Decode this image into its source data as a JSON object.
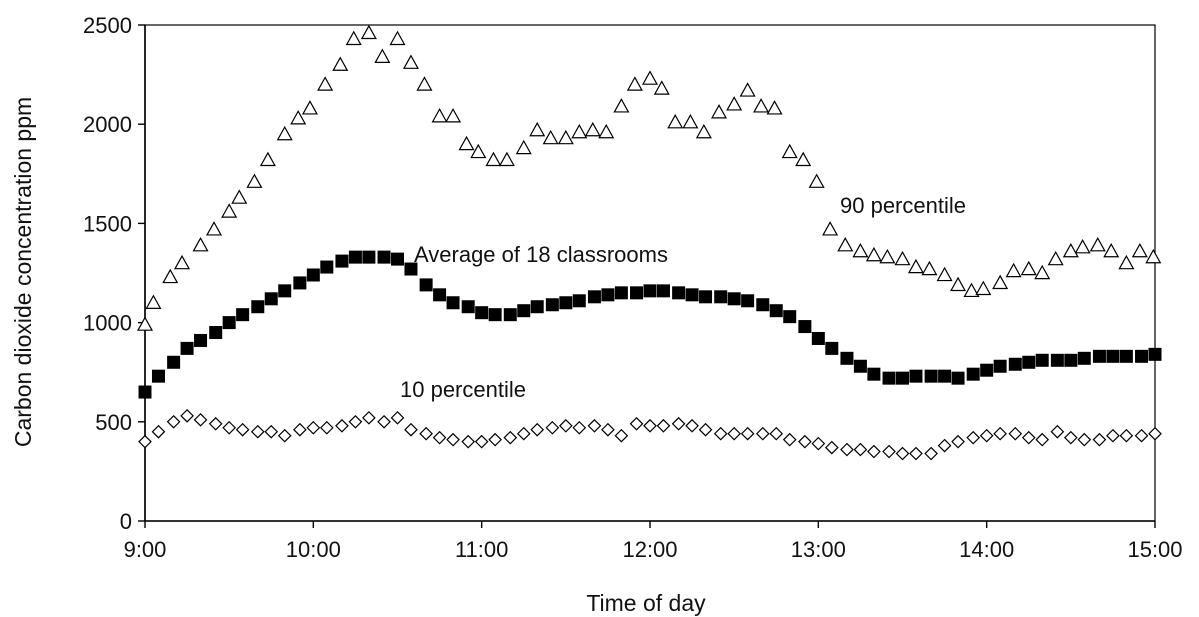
{
  "chart_data": {
    "type": "scatter",
    "title": "",
    "xlabel": "Time of day",
    "ylabel": "Carbon dioxide concentration ppm",
    "x_unit": "hours (clock time)",
    "xlim": [
      9,
      15
    ],
    "ylim": [
      0,
      2500
    ],
    "x_ticks": [
      {
        "value": 9,
        "label": "9:00"
      },
      {
        "value": 10,
        "label": "10:00"
      },
      {
        "value": 11,
        "label": "11:00"
      },
      {
        "value": 12,
        "label": "12:00"
      },
      {
        "value": 13,
        "label": "13:00"
      },
      {
        "value": 14,
        "label": "14:00"
      },
      {
        "value": 15,
        "label": "15:00"
      }
    ],
    "y_ticks": [
      {
        "value": 0,
        "label": "0"
      },
      {
        "value": 500,
        "label": "500"
      },
      {
        "value": 1000,
        "label": "1000"
      },
      {
        "value": 1500,
        "label": "1500"
      },
      {
        "value": 2000,
        "label": "2000"
      },
      {
        "value": 2500,
        "label": "2500"
      }
    ],
    "grid": false,
    "legend": "none (series labelled directly on plot)",
    "annotations": [
      {
        "text": "90 percentile",
        "series": "90 percentile"
      },
      {
        "text": "Average of 18 classrooms",
        "series": "Average of 18 classrooms"
      },
      {
        "text": "10 percentile",
        "series": "10 percentile"
      }
    ],
    "series": [
      {
        "name": "90 percentile",
        "marker": "open-triangle",
        "color": "#000000",
        "x": [
          9.0,
          9.05,
          9.15,
          9.22,
          9.33,
          9.41,
          9.5,
          9.56,
          9.65,
          9.73,
          9.83,
          9.91,
          9.98,
          10.07,
          10.16,
          10.24,
          10.33,
          10.41,
          10.5,
          10.58,
          10.66,
          10.75,
          10.83,
          10.91,
          10.98,
          11.07,
          11.15,
          11.25,
          11.33,
          11.41,
          11.5,
          11.58,
          11.66,
          11.74,
          11.83,
          11.91,
          12.0,
          12.07,
          12.15,
          12.24,
          12.32,
          12.41,
          12.5,
          12.58,
          12.66,
          12.74,
          12.83,
          12.91,
          12.99,
          13.07,
          13.16,
          13.25,
          13.33,
          13.41,
          13.5,
          13.58,
          13.66,
          13.75,
          13.83,
          13.91,
          13.98,
          14.08,
          14.16,
          14.25,
          14.33,
          14.41,
          14.5,
          14.57,
          14.66,
          14.74,
          14.83,
          14.91,
          14.99
        ],
        "values": [
          990,
          1100,
          1230,
          1300,
          1390,
          1470,
          1560,
          1630,
          1710,
          1820,
          1950,
          2030,
          2080,
          2200,
          2300,
          2430,
          2460,
          2340,
          2430,
          2310,
          2200,
          2040,
          2040,
          1900,
          1860,
          1820,
          1820,
          1880,
          1970,
          1930,
          1930,
          1960,
          1970,
          1960,
          2090,
          2200,
          2230,
          2180,
          2010,
          2010,
          1960,
          2060,
          2100,
          2170,
          2090,
          2080,
          1860,
          1820,
          1710,
          1470,
          1390,
          1360,
          1340,
          1330,
          1320,
          1280,
          1270,
          1240,
          1190,
          1160,
          1170,
          1200,
          1260,
          1270,
          1250,
          1320,
          1360,
          1380,
          1390,
          1360,
          1300,
          1360,
          1330
        ]
      },
      {
        "name": "Average of 18 classrooms",
        "marker": "filled-square",
        "color": "#000000",
        "x": [
          9.0,
          9.08,
          9.17,
          9.25,
          9.33,
          9.42,
          9.5,
          9.58,
          9.67,
          9.75,
          9.83,
          9.92,
          10.0,
          10.08,
          10.17,
          10.25,
          10.33,
          10.42,
          10.5,
          10.58,
          10.67,
          10.75,
          10.83,
          10.92,
          11.0,
          11.08,
          11.17,
          11.25,
          11.33,
          11.42,
          11.5,
          11.58,
          11.67,
          11.75,
          11.83,
          11.92,
          12.0,
          12.08,
          12.17,
          12.25,
          12.33,
          12.42,
          12.5,
          12.58,
          12.67,
          12.75,
          12.83,
          12.92,
          13.0,
          13.08,
          13.17,
          13.25,
          13.33,
          13.42,
          13.5,
          13.58,
          13.67,
          13.75,
          13.83,
          13.92,
          14.0,
          14.08,
          14.17,
          14.25,
          14.33,
          14.42,
          14.5,
          14.58,
          14.67,
          14.75,
          14.83,
          14.92,
          15.0
        ],
        "values": [
          650,
          730,
          800,
          870,
          910,
          950,
          1000,
          1040,
          1080,
          1120,
          1160,
          1200,
          1240,
          1280,
          1310,
          1330,
          1330,
          1330,
          1320,
          1270,
          1190,
          1140,
          1100,
          1080,
          1050,
          1040,
          1040,
          1060,
          1080,
          1090,
          1100,
          1110,
          1130,
          1140,
          1150,
          1150,
          1160,
          1160,
          1150,
          1140,
          1130,
          1130,
          1120,
          1110,
          1090,
          1060,
          1030,
          980,
          920,
          870,
          820,
          780,
          740,
          720,
          720,
          730,
          730,
          730,
          720,
          740,
          760,
          780,
          790,
          800,
          810,
          810,
          810,
          820,
          830,
          830,
          830,
          830,
          840
        ]
      },
      {
        "name": "10 percentile",
        "marker": "open-diamond",
        "color": "#000000",
        "x": [
          9.0,
          9.08,
          9.17,
          9.25,
          9.33,
          9.42,
          9.5,
          9.58,
          9.67,
          9.75,
          9.83,
          9.92,
          10.0,
          10.08,
          10.17,
          10.25,
          10.33,
          10.42,
          10.5,
          10.58,
          10.67,
          10.75,
          10.83,
          10.92,
          11.0,
          11.08,
          11.17,
          11.25,
          11.33,
          11.42,
          11.5,
          11.58,
          11.67,
          11.75,
          11.83,
          11.92,
          12.0,
          12.08,
          12.17,
          12.25,
          12.33,
          12.42,
          12.5,
          12.58,
          12.67,
          12.75,
          12.83,
          12.92,
          13.0,
          13.08,
          13.17,
          13.25,
          13.33,
          13.42,
          13.5,
          13.58,
          13.67,
          13.75,
          13.83,
          13.92,
          14.0,
          14.08,
          14.17,
          14.25,
          14.33,
          14.42,
          14.5,
          14.58,
          14.67,
          14.75,
          14.83,
          14.92,
          15.0
        ],
        "values": [
          400,
          450,
          500,
          530,
          510,
          490,
          470,
          460,
          450,
          450,
          430,
          460,
          470,
          470,
          480,
          500,
          520,
          500,
          520,
          460,
          440,
          420,
          410,
          400,
          400,
          410,
          420,
          440,
          460,
          470,
          480,
          470,
          480,
          460,
          430,
          490,
          480,
          480,
          490,
          480,
          460,
          440,
          440,
          440,
          440,
          440,
          410,
          400,
          390,
          370,
          360,
          360,
          350,
          350,
          340,
          340,
          340,
          380,
          400,
          420,
          430,
          440,
          440,
          420,
          410,
          450,
          420,
          410,
          410,
          430,
          430,
          430,
          440
        ]
      }
    ]
  }
}
